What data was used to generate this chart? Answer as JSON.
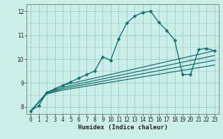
{
  "xlabel": "Humidex (Indice chaleur)",
  "ylabel": "",
  "xlim": [
    -0.5,
    23.5
  ],
  "ylim": [
    7.7,
    12.3
  ],
  "bg_color": "#cceee8",
  "grid_color": "#99cccc",
  "line_color": "#1a7070",
  "series": [
    {
      "x": [
        0,
        1,
        2,
        3,
        4,
        5,
        6,
        7,
        8,
        9,
        10,
        11,
        12,
        13,
        14,
        15,
        16,
        17,
        18,
        19,
        20,
        21,
        22,
        23
      ],
      "y": [
        7.83,
        8.05,
        8.6,
        8.75,
        8.9,
        9.05,
        9.2,
        9.35,
        9.5,
        10.1,
        9.95,
        10.85,
        11.5,
        11.8,
        11.95,
        12.0,
        11.55,
        11.2,
        10.8,
        9.35,
        9.35,
        10.4,
        10.45,
        10.35
      ],
      "marker": "D",
      "markersize": 2.5,
      "linewidth": 1.0
    },
    {
      "x": [
        0,
        2,
        4,
        23
      ],
      "y": [
        7.83,
        8.6,
        8.9,
        10.35
      ],
      "marker": null,
      "markersize": 0,
      "linewidth": 0.9
    },
    {
      "x": [
        0,
        2,
        4,
        23
      ],
      "y": [
        7.83,
        8.58,
        8.82,
        10.15
      ],
      "marker": null,
      "markersize": 0,
      "linewidth": 0.9
    },
    {
      "x": [
        0,
        2,
        4,
        23
      ],
      "y": [
        7.83,
        8.56,
        8.76,
        9.95
      ],
      "marker": null,
      "markersize": 0,
      "linewidth": 0.9
    },
    {
      "x": [
        0,
        2,
        4,
        23
      ],
      "y": [
        7.83,
        8.54,
        8.7,
        9.75
      ],
      "marker": null,
      "markersize": 0,
      "linewidth": 0.9
    }
  ],
  "xticks": [
    0,
    1,
    2,
    3,
    4,
    5,
    6,
    7,
    8,
    9,
    10,
    11,
    12,
    13,
    14,
    15,
    16,
    17,
    18,
    19,
    20,
    21,
    22,
    23
  ],
  "yticks": [
    8,
    9,
    10,
    11,
    12
  ],
  "tick_fontsize": 5.5,
  "xlabel_fontsize": 6.5
}
